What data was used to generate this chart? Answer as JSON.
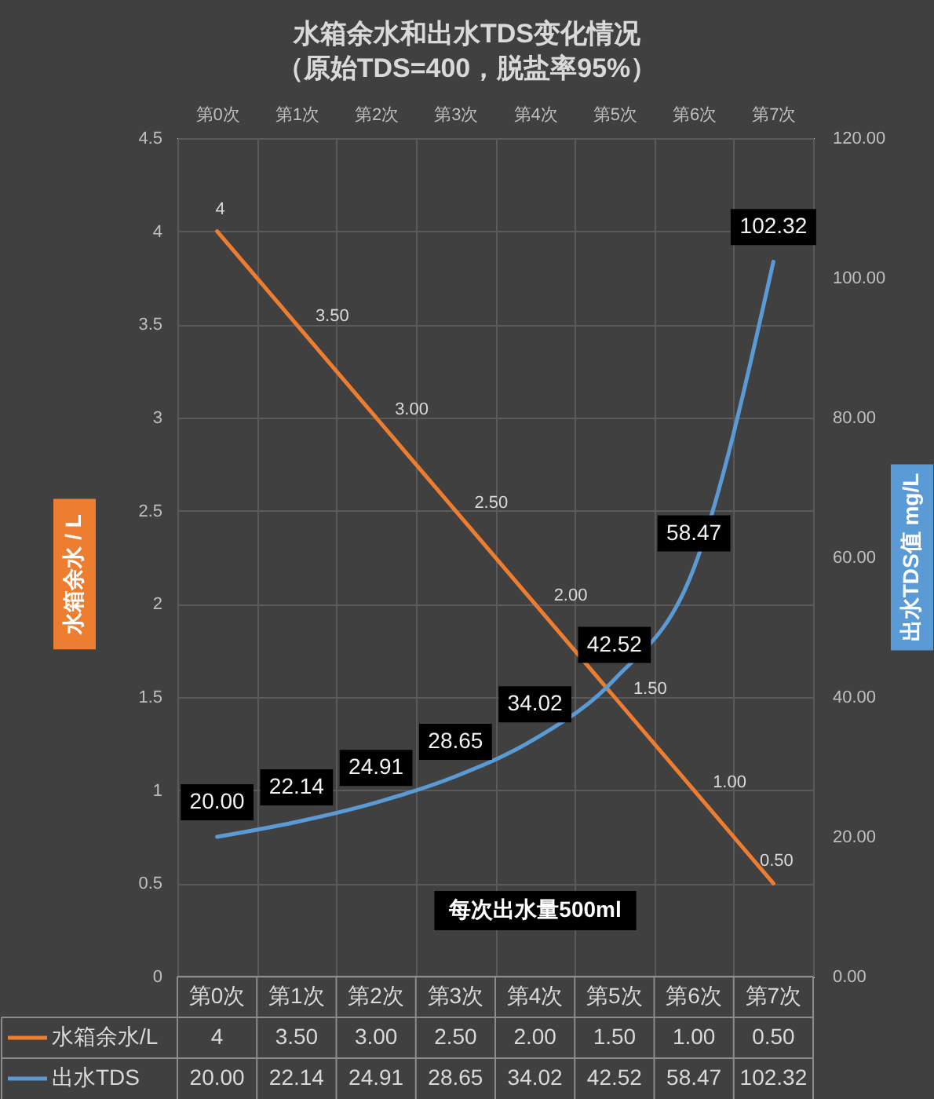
{
  "chart_data": {
    "type": "line",
    "title": "水箱余水和出水TDS变化情况",
    "subtitle": "（原始TDS=400，脱盐率95%）",
    "xlabel": "每次出水量500ml",
    "ylabel": "水箱余水 / L",
    "y2label": "出水TDS值 mg/L",
    "categories": [
      "第0次",
      "第1次",
      "第2次",
      "第3次",
      "第4次",
      "第5次",
      "第6次",
      "第7次"
    ],
    "series": [
      {
        "name": "水箱余水/L",
        "color": "#ed7d31",
        "values": [
          4,
          3.5,
          3,
          2.5,
          2,
          1.5,
          1,
          0.5
        ],
        "value_labels": [
          "4",
          "3.50",
          "3.00",
          "2.50",
          "2.00",
          "1.50",
          "1.00",
          "0.50"
        ]
      },
      {
        "name": "出水TDS",
        "color": "#5b9bd5",
        "axis": "y2",
        "values": [
          20,
          22.14,
          24.91,
          28.65,
          34.02,
          42.52,
          58.47,
          102.32
        ],
        "value_labels": [
          "20.00",
          "22.14",
          "24.91",
          "28.65",
          "34.02",
          "42.52",
          "58.47",
          "102.32"
        ]
      }
    ],
    "ylim": [
      0,
      4.5
    ],
    "yticks": [
      0,
      0.5,
      1,
      1.5,
      2,
      2.5,
      3,
      3.5,
      4,
      4.5
    ],
    "y2lim": [
      0,
      120
    ],
    "y2ticks": [
      {
        "value": 0,
        "label": "0.00"
      },
      {
        "value": 20,
        "label": "20.00"
      },
      {
        "value": 40,
        "label": "40.00"
      },
      {
        "value": 60,
        "label": "60.00"
      },
      {
        "value": 80,
        "label": "80.00"
      },
      {
        "value": 100,
        "label": "100.00"
      },
      {
        "value": 120,
        "label": "120.00"
      }
    ],
    "grid": true,
    "legend": "bottom"
  }
}
